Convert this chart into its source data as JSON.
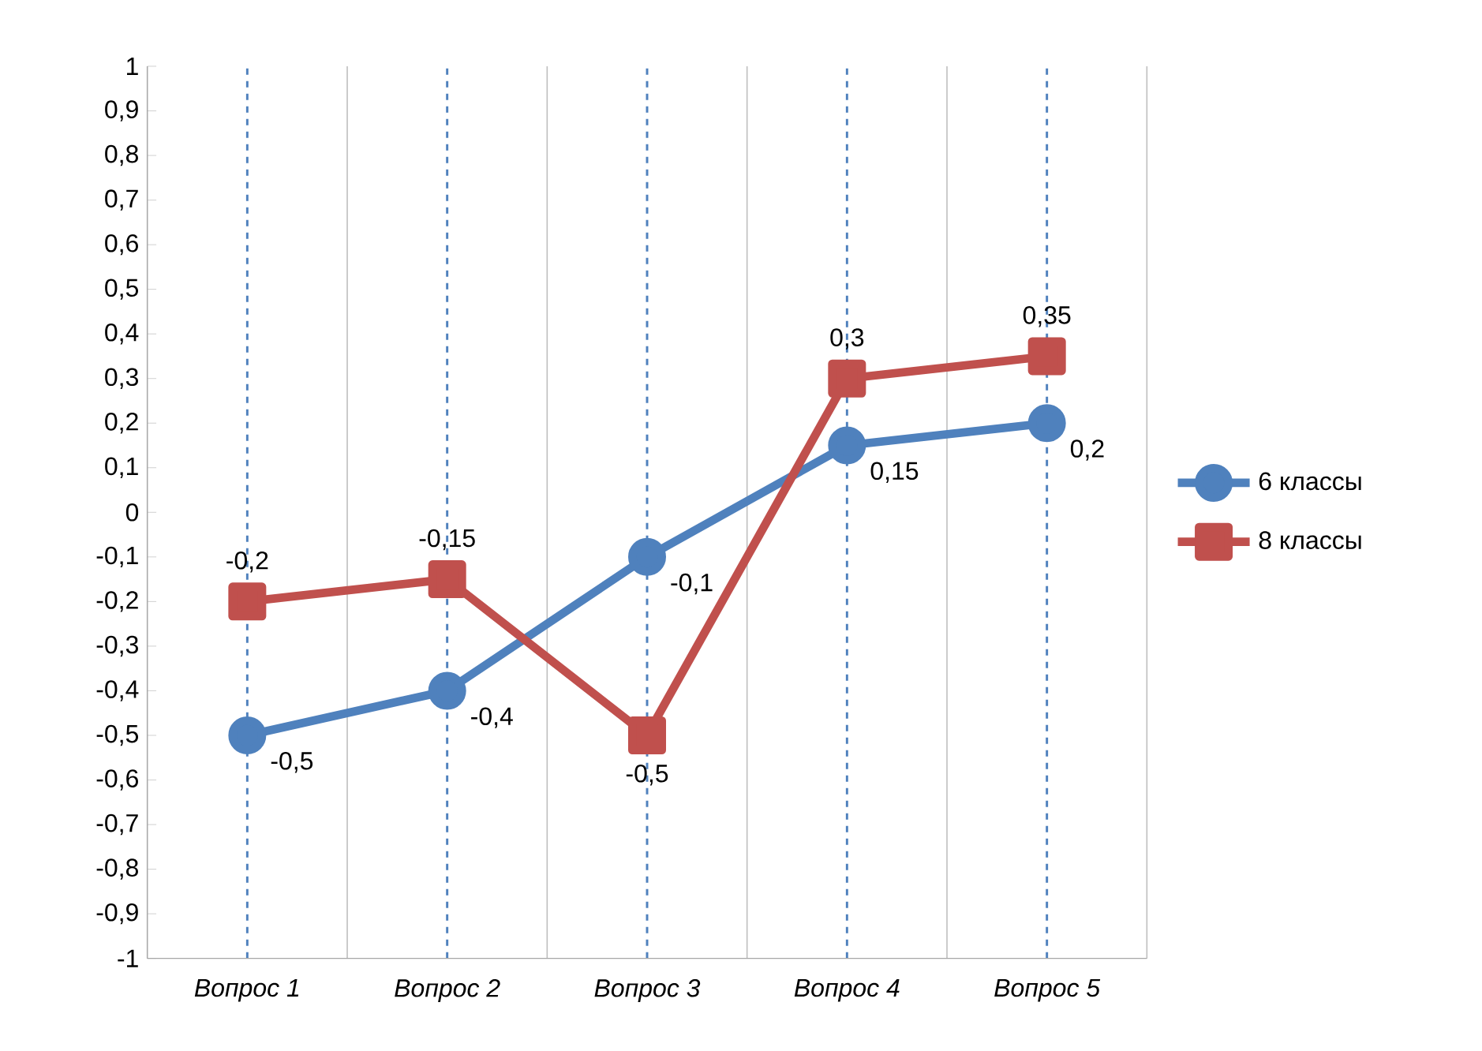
{
  "chart_data": {
    "type": "line",
    "categories": [
      "Вопрос 1",
      "Вопрос 2",
      "Вопрос 3",
      "Вопрос 4",
      "Вопрос 5"
    ],
    "series": [
      {
        "name": "6 классы",
        "color": "#4f81bd",
        "marker": "circle",
        "values": [
          -0.5,
          -0.4,
          -0.1,
          0.15,
          0.2
        ],
        "value_labels": [
          "-0,5",
          "-0,4",
          "-0,1",
          "0,15",
          "0,2"
        ]
      },
      {
        "name": "8 классы",
        "color": "#c0504d",
        "marker": "square",
        "values": [
          -0.2,
          -0.15,
          -0.5,
          0.3,
          0.35
        ],
        "value_labels": [
          "-0,2",
          "-0,15",
          "-0,5",
          "0,3",
          "0,35"
        ]
      }
    ],
    "ylim": [
      -1,
      1
    ],
    "yticks": [
      {
        "value": -1,
        "label": "-1"
      },
      {
        "value": -0.9,
        "label": "-0,9"
      },
      {
        "value": -0.8,
        "label": "-0,8"
      },
      {
        "value": -0.7,
        "label": "-0,7"
      },
      {
        "value": -0.6,
        "label": "-0,6"
      },
      {
        "value": -0.5,
        "label": "-0,5"
      },
      {
        "value": -0.4,
        "label": "-0,4"
      },
      {
        "value": -0.3,
        "label": "-0,3"
      },
      {
        "value": -0.2,
        "label": "-0,2"
      },
      {
        "value": -0.1,
        "label": "-0,1"
      },
      {
        "value": 0,
        "label": "0"
      },
      {
        "value": 0.1,
        "label": "0,1"
      },
      {
        "value": 0.2,
        "label": "0,2"
      },
      {
        "value": 0.3,
        "label": "0,3"
      },
      {
        "value": 0.4,
        "label": "0,4"
      },
      {
        "value": 0.5,
        "label": "0,5"
      },
      {
        "value": 0.6,
        "label": "0,6"
      },
      {
        "value": 0.7,
        "label": "0,7"
      },
      {
        "value": 0.8,
        "label": "0,8"
      },
      {
        "value": 0.9,
        "label": "0,9"
      },
      {
        "value": 1,
        "label": "1"
      }
    ],
    "grid": "x",
    "legend": "right",
    "line_style": "solid"
  }
}
